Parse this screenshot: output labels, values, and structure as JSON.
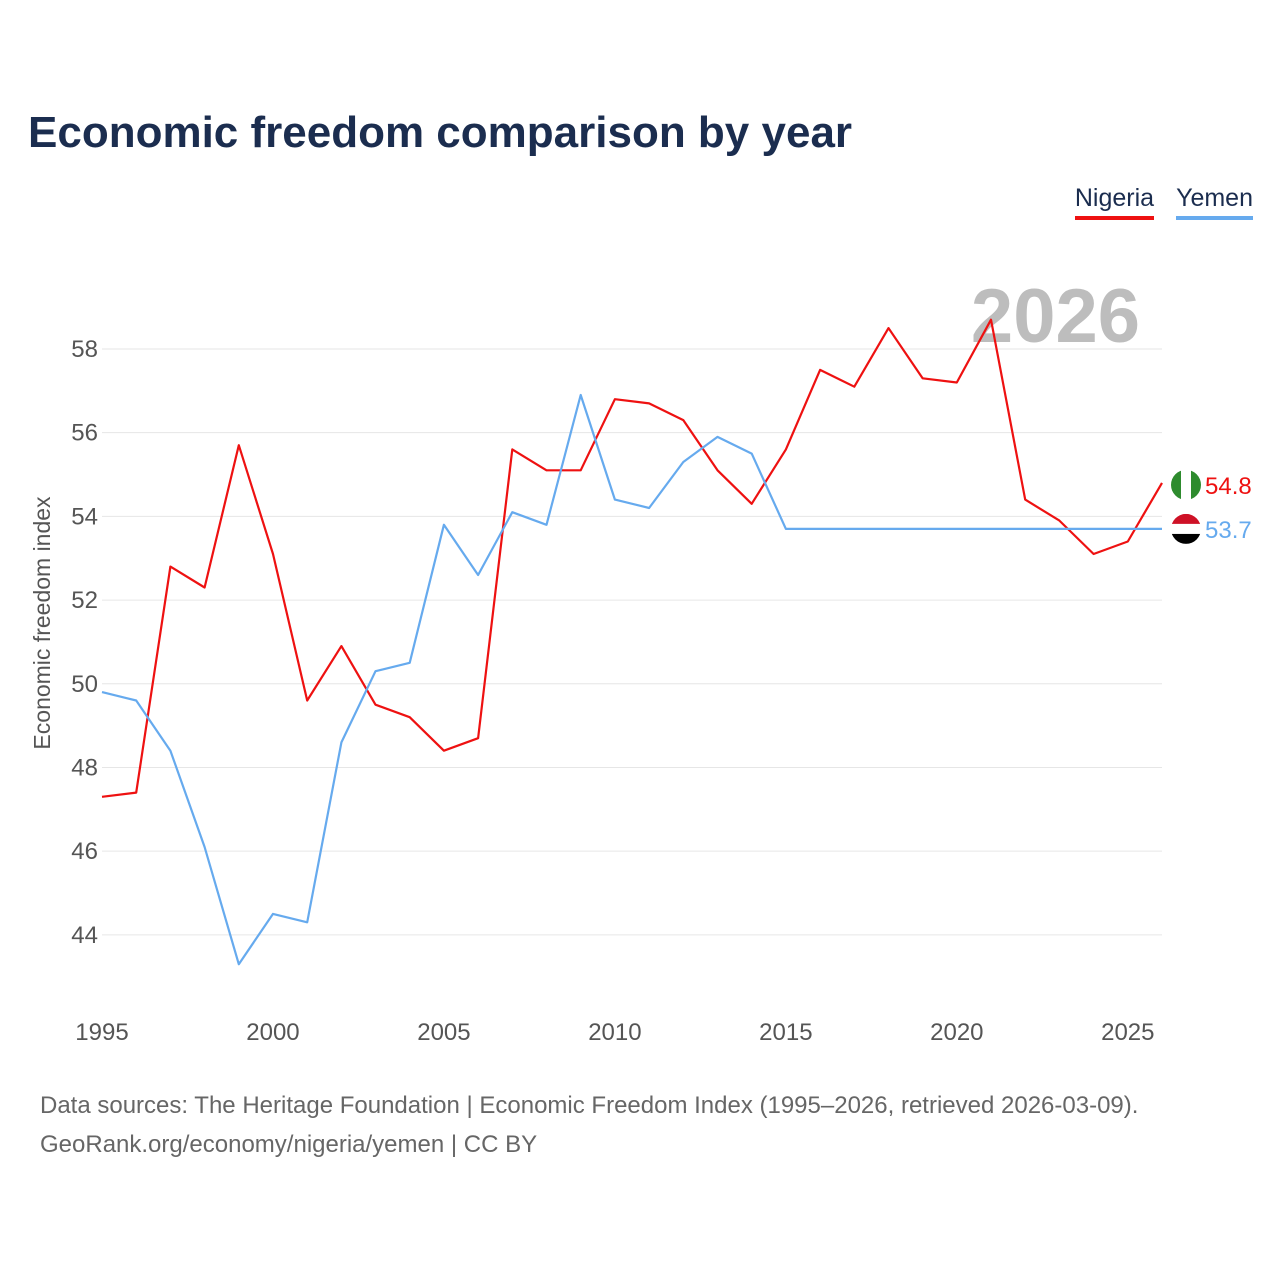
{
  "header": {
    "title": "Economic freedom comparison by year"
  },
  "legend": [
    {
      "name": "Nigeria",
      "color": "#ee1111"
    },
    {
      "name": "Yemen",
      "color": "#66aaee"
    }
  ],
  "flags": [
    {
      "country": "Nigeria",
      "icon": "nigeria-flag-icon",
      "colors": [
        "#2e8b2e",
        "#ffffff"
      ]
    },
    {
      "country": "Yemen",
      "icon": "yemen-flag-icon",
      "colors": [
        "#ce1126",
        "#ffffff",
        "#000000"
      ]
    }
  ],
  "footer": {
    "line1": "Data sources: The Heritage Foundation | Economic Freedom Index (1995–2026, retrieved 2026-03-09).",
    "line2": "GeoRank.org/economy/nigeria/yemen | CC BY"
  },
  "chart_data": {
    "type": "line",
    "title": "Economic freedom comparison by year",
    "xlabel": "",
    "ylabel": "Economic freedom index",
    "current_year_label": "2026",
    "xlim": [
      1995,
      2026
    ],
    "ylim": [
      42.3,
      60.7
    ],
    "x_ticks": [
      1995,
      2000,
      2005,
      2010,
      2015,
      2020,
      2025
    ],
    "y_ticks": [
      44,
      46,
      48,
      50,
      52,
      54,
      56,
      58
    ],
    "grid": true,
    "legend_position": "top-right",
    "x": [
      1995,
      1996,
      1997,
      1998,
      1999,
      2000,
      2001,
      2002,
      2003,
      2004,
      2005,
      2006,
      2007,
      2008,
      2009,
      2010,
      2011,
      2012,
      2013,
      2014,
      2015,
      2016,
      2017,
      2018,
      2019,
      2020,
      2021,
      2022,
      2023,
      2024,
      2025,
      2026
    ],
    "series": [
      {
        "name": "Nigeria",
        "color": "#ee1111",
        "end_label": "54.8",
        "values": [
          47.3,
          47.4,
          52.8,
          52.3,
          55.7,
          53.1,
          49.6,
          50.9,
          49.5,
          49.2,
          48.4,
          48.7,
          55.6,
          55.1,
          55.1,
          56.8,
          56.7,
          56.3,
          55.1,
          54.3,
          55.6,
          57.5,
          57.1,
          58.5,
          57.3,
          57.2,
          58.7,
          54.4,
          53.9,
          53.1,
          53.4,
          54.8
        ]
      },
      {
        "name": "Yemen",
        "color": "#66aaee",
        "end_label": "53.7",
        "values": [
          49.8,
          49.6,
          48.4,
          46.1,
          43.3,
          44.5,
          44.3,
          48.6,
          50.3,
          50.5,
          53.8,
          52.6,
          54.1,
          53.8,
          56.9,
          54.4,
          54.2,
          55.3,
          55.9,
          55.5,
          53.7,
          53.7,
          53.7,
          53.7,
          53.7,
          53.7,
          53.7,
          53.7,
          53.7,
          53.7,
          53.7,
          53.7
        ]
      }
    ]
  }
}
